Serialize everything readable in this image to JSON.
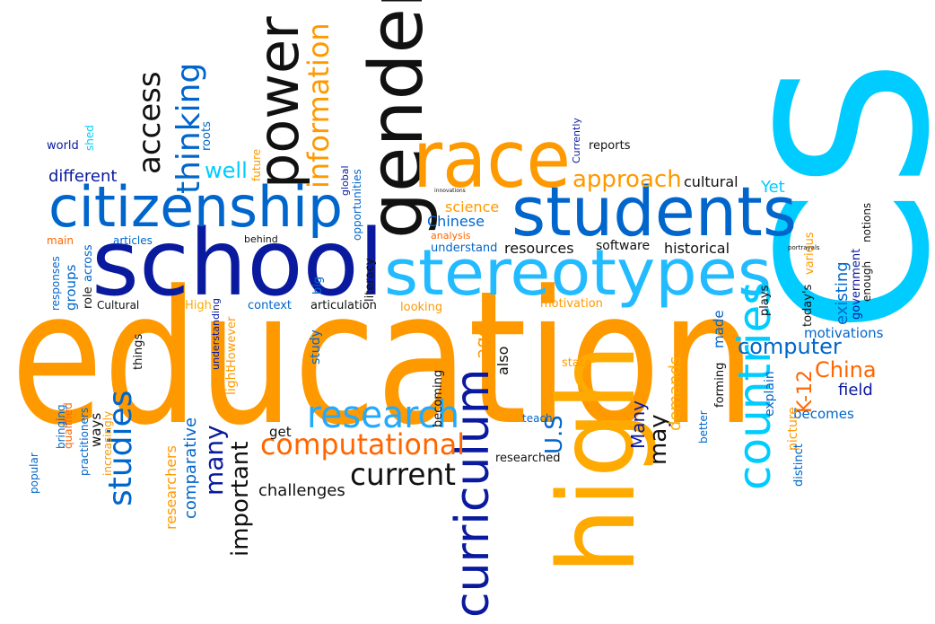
{
  "colors": {
    "orange": "#ff9900",
    "dark_orange": "#ff6600",
    "blue": "#0066cc",
    "navy": "#0a1a9e",
    "cyan": "#00ccff",
    "black": "#000000",
    "light_orange": "#ffcc33"
  },
  "words": [
    "education",
    "CS",
    "high",
    "school",
    "gender",
    "race",
    "students",
    "stereotypes",
    "citizenship",
    "power",
    "curriculum",
    "countries",
    "research",
    "computational",
    "information",
    "thinking",
    "access",
    "current",
    "studies",
    "approach",
    "China",
    "computer",
    "K-12",
    "U.S",
    "many",
    "important",
    "Many",
    "may",
    "challenges",
    "demands",
    "age",
    "also",
    "Chinese",
    "science",
    "researchers",
    "comparative",
    "well",
    "different",
    "world",
    "global",
    "opportunities",
    "literacy",
    "resources",
    "software",
    "historical",
    "cultural",
    "Yet",
    "existing",
    "government",
    "notions",
    "enough",
    "motivations",
    "field",
    "becomes",
    "explain",
    "picture",
    "distinct",
    "forming",
    "made",
    "today's",
    "plays",
    "various",
    "portrayals",
    "big",
    "study",
    "groups",
    "role",
    "across",
    "responses",
    "main",
    "articles",
    "behind",
    "understanding",
    "However",
    "light",
    "High",
    "Cultural",
    "context",
    "articulation",
    "looking",
    "motivation",
    "things",
    "ways",
    "increasingly",
    "practitioners",
    "qualified",
    "bringing",
    "popular",
    "get",
    "becoming",
    "state",
    "teach",
    "researched",
    "better",
    "reports",
    "Currently",
    "future",
    "shed",
    "roots",
    "understand",
    "analysis",
    "innovations"
  ]
}
